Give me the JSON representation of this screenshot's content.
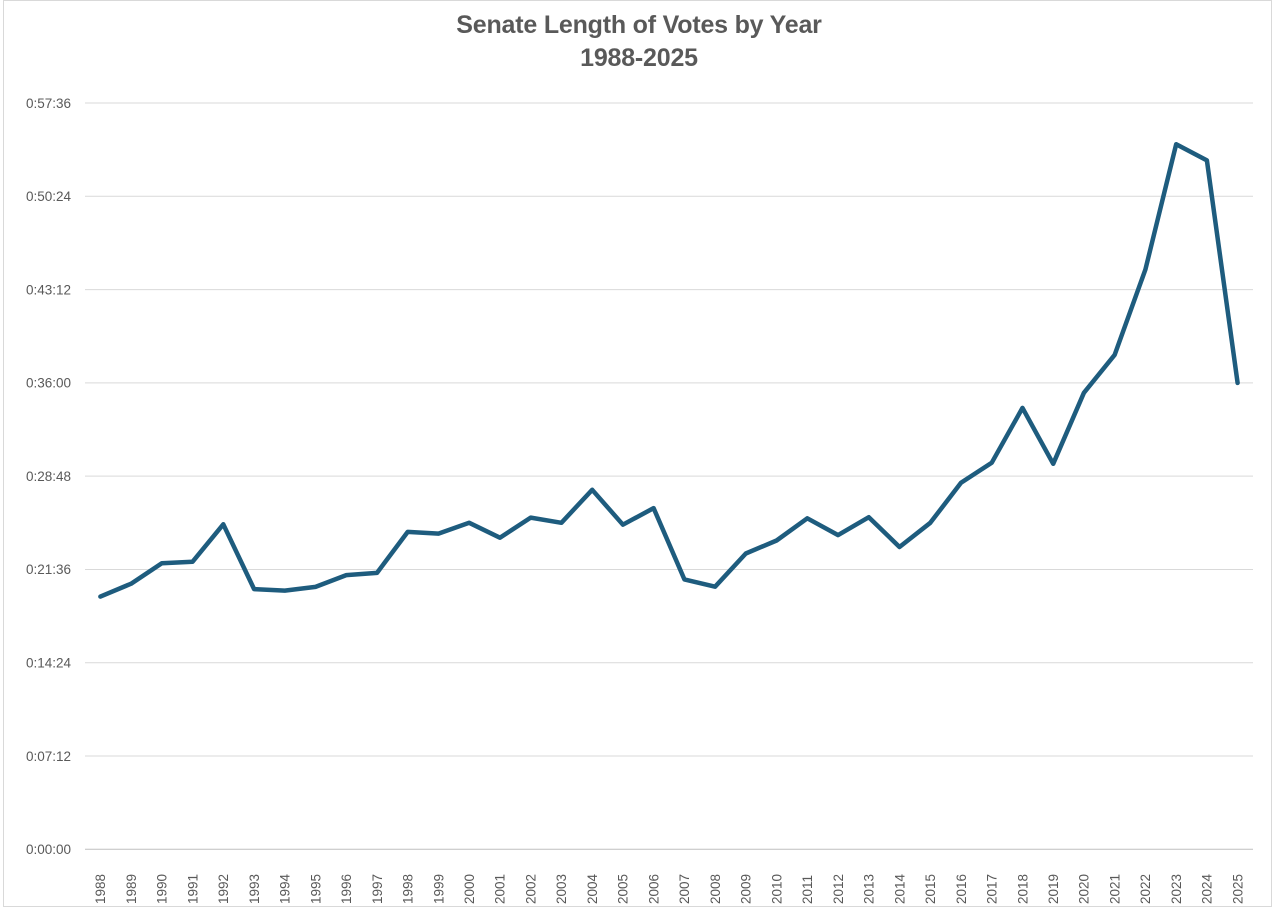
{
  "title": {
    "line1": "Senate Length of Votes by Year",
    "line2": "1988-2025"
  },
  "colors": {
    "line": "#1E5C7E",
    "gridline": "#D9D9D9",
    "axis_line": "#BFBFBF",
    "text": "#595959",
    "frame_border": "#D9D9D9",
    "background": "#FFFFFF"
  },
  "chart_data": {
    "type": "line",
    "title": "Senate Length of Votes by Year 1988-2025",
    "xlabel": "",
    "ylabel": "",
    "legend": "none",
    "grid": "horizontal",
    "categories": [
      "1988",
      "1989",
      "1990",
      "1991",
      "1992",
      "1993",
      "1994",
      "1995",
      "1996",
      "1997",
      "1998",
      "1999",
      "2000",
      "2001",
      "2002",
      "2003",
      "2004",
      "2005",
      "2006",
      "2007",
      "2008",
      "2009",
      "2010",
      "2011",
      "2012",
      "2013",
      "2014",
      "2015",
      "2016",
      "2017",
      "2018",
      "2019",
      "2020",
      "2021",
      "2022",
      "2023",
      "2024",
      "2025"
    ],
    "values_seconds": [
      1170,
      1230,
      1325,
      1332,
      1505,
      1205,
      1198,
      1215,
      1270,
      1280,
      1470,
      1462,
      1512,
      1443,
      1536,
      1512,
      1665,
      1503,
      1580,
      1250,
      1216,
      1370,
      1430,
      1533,
      1455,
      1538,
      1400,
      1512,
      1697,
      1790,
      2044,
      1785,
      2114,
      2290,
      2685,
      3265,
      3190,
      2160
    ],
    "values_hms": [
      "0:19:30",
      "0:20:30",
      "0:22:05",
      "0:22:12",
      "0:25:05",
      "0:20:05",
      "0:19:58",
      "0:20:15",
      "0:21:10",
      "0:21:20",
      "0:24:30",
      "0:24:22",
      "0:25:12",
      "0:24:03",
      "0:25:36",
      "0:25:12",
      "0:27:45",
      "0:25:03",
      "0:26:20",
      "0:20:50",
      "0:20:16",
      "0:22:50",
      "0:23:50",
      "0:25:33",
      "0:24:15",
      "0:25:38",
      "0:23:20",
      "0:25:12",
      "0:28:17",
      "0:29:50",
      "0:34:04",
      "0:29:45",
      "0:35:14",
      "0:38:10",
      "0:44:45",
      "0:54:25",
      "0:53:10",
      "0:36:00"
    ],
    "y_axis": {
      "tick_labels": [
        "0:00:00",
        "0:07:12",
        "0:14:24",
        "0:21:36",
        "0:28:48",
        "0:36:00",
        "0:43:12",
        "0:50:24",
        "0:57:36"
      ],
      "tick_seconds": [
        0,
        432,
        864,
        1296,
        1728,
        2160,
        2592,
        3024,
        3456
      ],
      "min_seconds": 0,
      "max_seconds": 3456
    }
  }
}
